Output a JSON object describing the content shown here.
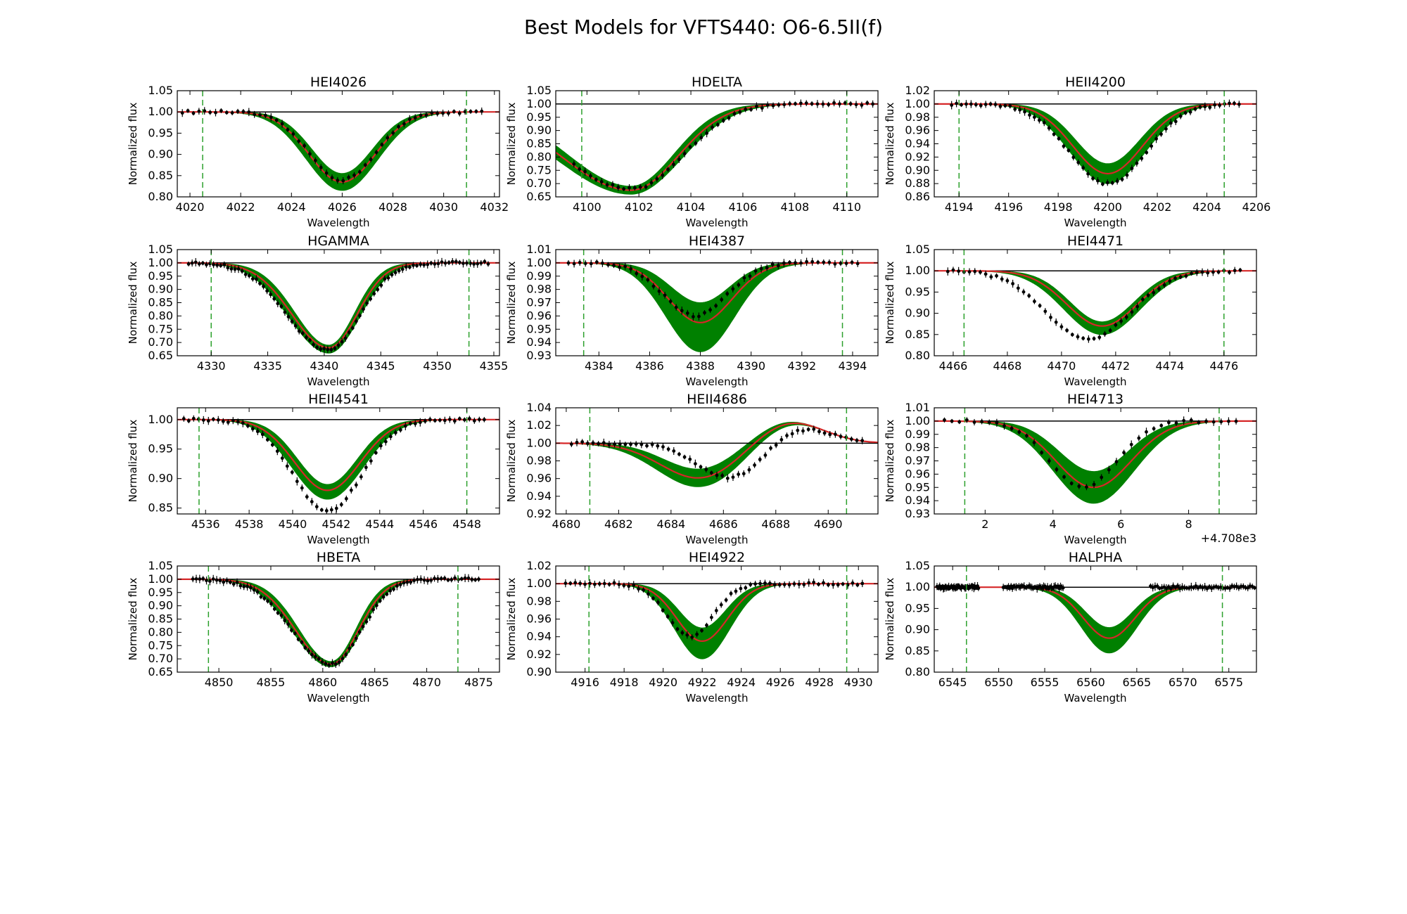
{
  "figure": {
    "title": "Best Models for VFTS440: O6-6.5II(f)"
  },
  "colors": {
    "model_band": "#008000",
    "best_fit": "#d62728",
    "observed": "#000000",
    "continuum": "#000000",
    "window": "#2ca02c"
  },
  "chart_data": [
    {
      "type": "line",
      "title": "HEI4026",
      "xlabel": "Wavelength",
      "ylabel": "Normalized flux",
      "xlim": [
        4019.5,
        4032.2
      ],
      "ylim": [
        0.8,
        1.05
      ],
      "xticks": [
        4020,
        4022,
        4024,
        4026,
        4028,
        4030,
        4032
      ],
      "yticks": [
        0.8,
        0.85,
        0.9,
        0.95,
        1.0,
        1.05
      ],
      "window_lines": [
        4020.5,
        4030.9
      ],
      "line_center": 4026.0,
      "line_width": 1.3,
      "skew": 0.0,
      "best_depth": 0.165,
      "band_depth_min": 0.145,
      "band_depth_max": 0.185,
      "obs_x_range": [
        4019.7,
        4031.5
      ],
      "obs_count": 55,
      "obs_depth": 0.16,
      "obs_shift": 0.0,
      "obs_width_scale": 1.0
    },
    {
      "type": "line",
      "title": "HDELTA",
      "xlabel": "Wavelength",
      "ylabel": "Normalized flux",
      "xlim": [
        4098.8,
        4111.2
      ],
      "ylim": [
        0.65,
        1.05
      ],
      "xticks": [
        4100,
        4102,
        4104,
        4106,
        4108,
        4110
      ],
      "yticks": [
        0.65,
        0.7,
        0.75,
        0.8,
        0.85,
        0.9,
        0.95,
        1.0,
        1.05
      ],
      "window_lines": [
        4099.8,
        4110.0
      ],
      "line_center": 4101.7,
      "line_width": 1.8,
      "skew": 0.5,
      "best_depth": 0.325,
      "band_depth_min": 0.31,
      "band_depth_max": 0.34,
      "obs_x_range": [
        4099.5,
        4111.0
      ],
      "obs_count": 55,
      "obs_depth": 0.32,
      "obs_shift": 0.1,
      "obs_width_scale": 1.05
    },
    {
      "type": "line",
      "title": "HEII4200",
      "xlabel": "Wavelength",
      "ylabel": "Normalized flux",
      "xlim": [
        4193.0,
        4206.0
      ],
      "ylim": [
        0.86,
        1.02
      ],
      "xticks": [
        4194,
        4196,
        4198,
        4200,
        4202,
        4204,
        4206
      ],
      "yticks": [
        0.86,
        0.88,
        0.9,
        0.92,
        0.94,
        0.96,
        0.98,
        1.0,
        1.02
      ],
      "window_lines": [
        4194.0,
        4204.7
      ],
      "line_center": 4200.0,
      "line_width": 1.4,
      "skew": 0.0,
      "best_depth": 0.105,
      "band_depth_min": 0.09,
      "band_depth_max": 0.12,
      "obs_x_range": [
        4193.7,
        4205.3
      ],
      "obs_count": 60,
      "obs_depth": 0.12,
      "obs_shift": 0.0,
      "obs_width_scale": 1.1
    },
    {
      "type": "line",
      "title": "HGAMMA",
      "xlabel": "Wavelength",
      "ylabel": "Normalized flux",
      "xlim": [
        4327.0,
        4355.5
      ],
      "ylim": [
        0.65,
        1.05
      ],
      "xticks": [
        4330,
        4335,
        4340,
        4345,
        4350,
        4355
      ],
      "yticks": [
        0.65,
        0.7,
        0.75,
        0.8,
        0.85,
        0.9,
        0.95,
        1.0,
        1.05
      ],
      "window_lines": [
        4330.0,
        4352.8
      ],
      "line_center": 4340.4,
      "line_width": 2.5,
      "skew": 0.3,
      "best_depth": 0.32,
      "band_depth_min": 0.31,
      "band_depth_max": 0.34,
      "obs_x_range": [
        4328.0,
        4354.5
      ],
      "obs_count": 85,
      "obs_depth": 0.33,
      "obs_shift": 0.0,
      "obs_width_scale": 1.1
    },
    {
      "type": "line",
      "title": "HEI4387",
      "xlabel": "Wavelength",
      "ylabel": "Normalized flux",
      "xlim": [
        4382.3,
        4395.0
      ],
      "ylim": [
        0.93,
        1.01
      ],
      "xticks": [
        4384,
        4386,
        4388,
        4390,
        4392,
        4394
      ],
      "yticks": [
        0.93,
        0.94,
        0.95,
        0.96,
        0.97,
        0.98,
        0.99,
        1.0,
        1.01
      ],
      "window_lines": [
        4383.4,
        4393.6
      ],
      "line_center": 4388.0,
      "line_width": 1.25,
      "skew": 0.0,
      "best_depth": 0.045,
      "band_depth_min": 0.03,
      "band_depth_max": 0.067,
      "obs_x_range": [
        4382.8,
        4394.2
      ],
      "obs_count": 52,
      "obs_depth": 0.04,
      "obs_shift": -0.2,
      "obs_width_scale": 1.0
    },
    {
      "type": "line",
      "title": "HEI4471",
      "xlabel": "Wavelength",
      "ylabel": "Normalized flux",
      "xlim": [
        4465.3,
        4477.2
      ],
      "ylim": [
        0.8,
        1.05
      ],
      "xticks": [
        4466,
        4468,
        4470,
        4472,
        4474,
        4476
      ],
      "yticks": [
        0.8,
        0.85,
        0.9,
        0.95,
        1.0,
        1.05
      ],
      "window_lines": [
        4466.4,
        4476.0
      ],
      "line_center": 4471.5,
      "line_width": 1.3,
      "skew": 0.0,
      "best_depth": 0.13,
      "band_depth_min": 0.12,
      "band_depth_max": 0.15,
      "obs_x_range": [
        4465.8,
        4476.6
      ],
      "obs_count": 55,
      "obs_depth": 0.16,
      "obs_shift": -0.5,
      "obs_width_scale": 1.2
    },
    {
      "type": "line",
      "title": "HEII4541",
      "xlabel": "Wavelength",
      "ylabel": "Normalized flux",
      "xlim": [
        4534.7,
        4549.5
      ],
      "ylim": [
        0.84,
        1.02
      ],
      "xticks": [
        4536,
        4538,
        4540,
        4542,
        4544,
        4546,
        4548
      ],
      "yticks": [
        0.85,
        0.9,
        0.95,
        1.0
      ],
      "window_lines": [
        4535.7,
        4548.0
      ],
      "line_center": 4541.6,
      "line_width": 1.5,
      "skew": 0.0,
      "best_depth": 0.12,
      "band_depth_min": 0.11,
      "band_depth_max": 0.135,
      "obs_x_range": [
        4535.0,
        4548.8
      ],
      "obs_count": 62,
      "obs_depth": 0.155,
      "obs_shift": 0.0,
      "obs_width_scale": 1.05
    },
    {
      "type": "line",
      "title": "HEII4686",
      "xlabel": "Wavelength",
      "ylabel": "Normalized flux",
      "xlim": [
        4679.6,
        4691.9
      ],
      "ylim": [
        0.92,
        1.04
      ],
      "xticks": [
        4680,
        4682,
        4684,
        4686,
        4688,
        4690
      ],
      "yticks": [
        0.92,
        0.94,
        0.96,
        0.98,
        1.0,
        1.02,
        1.04
      ],
      "window_lines": [
        4680.9,
        4690.7
      ],
      "line_center": 4685.1,
      "line_width": 1.5,
      "skew": 0.0,
      "best_depth": 0.04,
      "band_depth_min": 0.03,
      "band_depth_max": 0.05,
      "emission_center": 4688.5,
      "emission_width": 1.3,
      "emission_height": 0.025,
      "obs_x_range": [
        4680.2,
        4691.3
      ],
      "obs_count": 55,
      "obs_depth": 0.045,
      "obs_shift": 1.4,
      "obs_width_scale": 0.9
    },
    {
      "type": "line",
      "title": "HEI4713",
      "xlabel": "Wavelength",
      "ylabel": "Normalized flux",
      "xlim": [
        4708.5,
        4718.0
      ],
      "ylim": [
        0.93,
        1.01
      ],
      "xticks": [
        4710.0,
        4712.0,
        4714.0,
        4716.0
      ],
      "xtick_labels": [
        "2",
        "4",
        "6",
        "8"
      ],
      "x_offset_label": "+4.708e3",
      "yticks": [
        0.93,
        0.94,
        0.95,
        0.96,
        0.97,
        0.98,
        0.99,
        1.0,
        1.01
      ],
      "window_lines": [
        4709.4,
        4716.9
      ],
      "line_center": 4713.2,
      "line_width": 1.1,
      "skew": 0.0,
      "best_depth": 0.05,
      "band_depth_min": 0.038,
      "band_depth_max": 0.062,
      "obs_x_range": [
        4708.8,
        4717.4
      ],
      "obs_count": 40,
      "obs_depth": 0.05,
      "obs_shift": -0.3,
      "obs_width_scale": 0.9
    },
    {
      "type": "line",
      "title": "HBETA",
      "xlabel": "Wavelength",
      "ylabel": "Normalized flux",
      "xlim": [
        4846.0,
        4877.0
      ],
      "ylim": [
        0.65,
        1.05
      ],
      "xticks": [
        4850,
        4855,
        4860,
        4865,
        4870,
        4875
      ],
      "yticks": [
        0.65,
        0.7,
        0.75,
        0.8,
        0.85,
        0.9,
        0.95,
        1.0,
        1.05
      ],
      "window_lines": [
        4849.0,
        4873.0
      ],
      "line_center": 4860.8,
      "line_width": 2.6,
      "skew": 0.3,
      "best_depth": 0.32,
      "band_depth_min": 0.31,
      "band_depth_max": 0.33,
      "obs_x_range": [
        4847.5,
        4875.0
      ],
      "obs_count": 85,
      "obs_depth": 0.32,
      "obs_shift": 0.0,
      "obs_width_scale": 1.1
    },
    {
      "type": "line",
      "title": "HEI4922",
      "xlabel": "Wavelength",
      "ylabel": "Normalized flux",
      "xlim": [
        4914.5,
        4931.0
      ],
      "ylim": [
        0.9,
        1.02
      ],
      "xticks": [
        4916,
        4918,
        4920,
        4922,
        4924,
        4926,
        4928,
        4930
      ],
      "yticks": [
        0.9,
        0.92,
        0.94,
        0.96,
        0.98,
        1.0,
        1.02
      ],
      "window_lines": [
        4916.2,
        4929.4
      ],
      "line_center": 4922.0,
      "line_width": 1.3,
      "skew": 0.0,
      "best_depth": 0.065,
      "band_depth_min": 0.05,
      "band_depth_max": 0.085,
      "obs_x_range": [
        4915.0,
        4930.2
      ],
      "obs_count": 62,
      "obs_depth": 0.06,
      "obs_shift": -0.6,
      "obs_width_scale": 0.9
    },
    {
      "type": "line",
      "title": "HALPHA",
      "xlabel": "Wavelength",
      "ylabel": "Normalized flux",
      "xlim": [
        6543.0,
        6578.0
      ],
      "ylim": [
        0.8,
        1.05
      ],
      "xticks": [
        6545,
        6550,
        6555,
        6560,
        6565,
        6570,
        6575
      ],
      "yticks": [
        0.8,
        0.85,
        0.9,
        0.95,
        1.0,
        1.05
      ],
      "window_lines": [
        6546.5,
        6574.3
      ],
      "line_center": 6562.0,
      "line_width": 2.8,
      "skew": 0.0,
      "best_depth": 0.12,
      "band_depth_min": 0.095,
      "band_depth_max": 0.155,
      "obs_segments": [
        [
          6543.3,
          6547.8
        ],
        [
          6550.5,
          6557.0
        ],
        [
          6566.5,
          6577.8
        ]
      ],
      "obs_count": 140,
      "obs_depth": 0.0,
      "obs_shift": 0.0,
      "obs_width_scale": 1.0
    }
  ]
}
